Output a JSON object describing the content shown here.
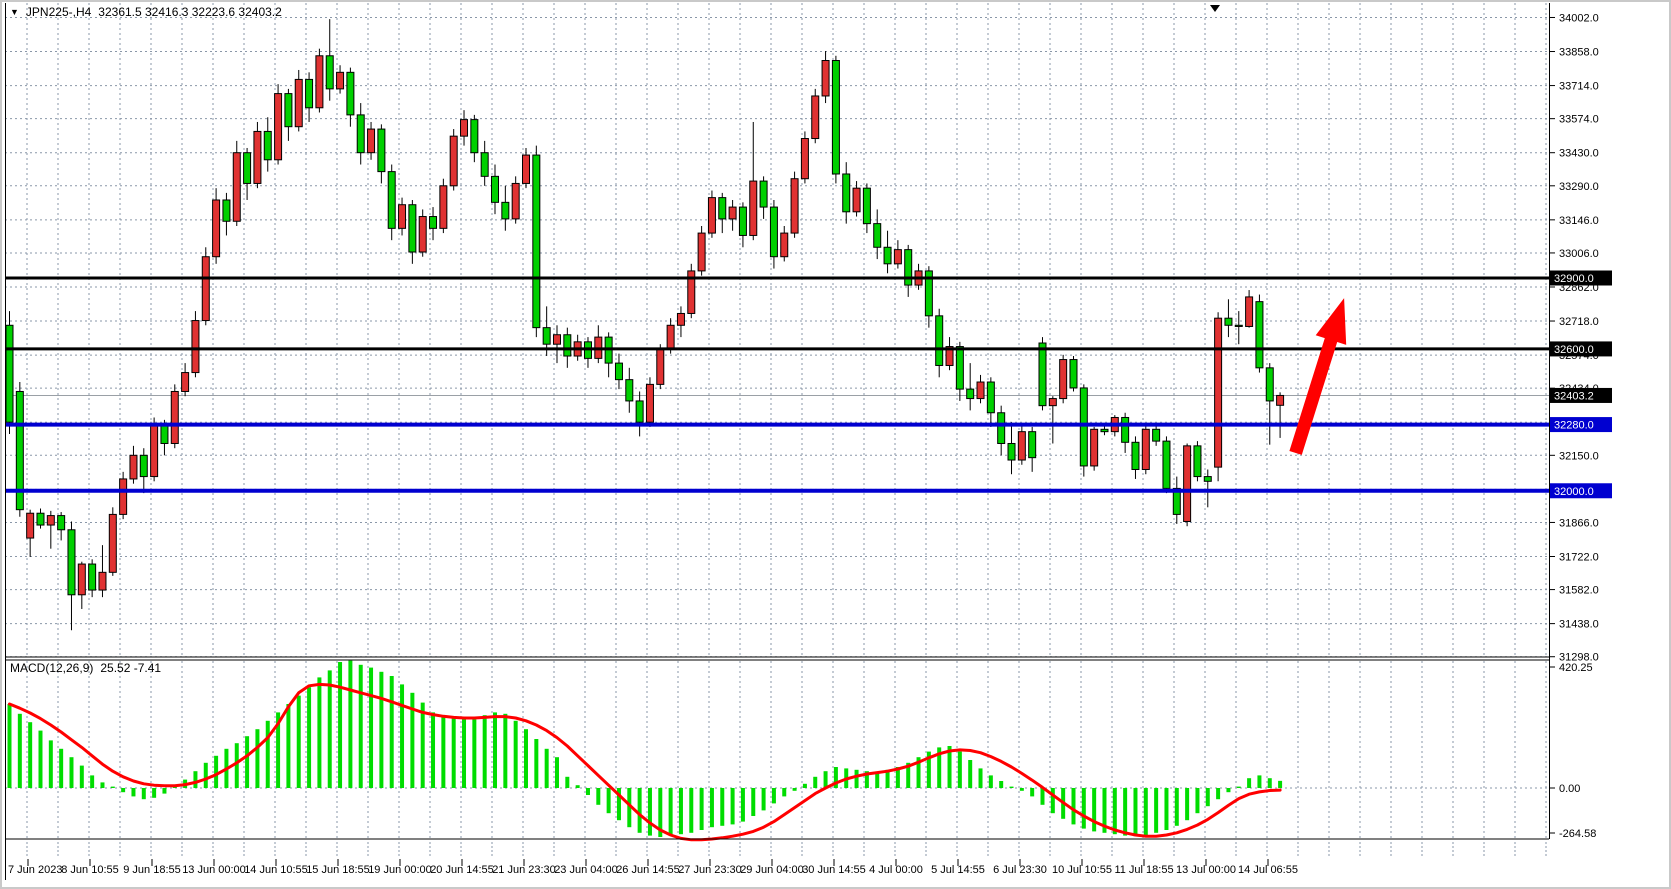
{
  "window": {
    "collapse_icon": "▼",
    "symbol_period": "JPN225-,H4",
    "ohlc_text": "32361.5 32416.3 32223.6 32403.2"
  },
  "colors": {
    "background": "#ffffff",
    "grid": "#8a97a8",
    "bull_candle": "#e03232",
    "bear_candle": "#00d000",
    "candle_border": "#000000",
    "wick": "#000000",
    "black_level_line": "#000000",
    "blue_level_line": "#0000d0",
    "current_price_line": "#9aa0a6",
    "macd_histogram": "#00dd00",
    "macd_signal": "#ff0000",
    "arrow": "#ff0000",
    "axis_text": "#000000",
    "chip_text": "#ffffff",
    "chip_black_bg": "#000000",
    "chip_blue_bg": "#0000d0"
  },
  "macd_panel": {
    "label": "MACD(12,26,9)",
    "values_text": "25.52 -7.41",
    "scale_max": "420.25",
    "scale_zero": "0.00",
    "scale_min": "-264.58"
  },
  "time_axis": {
    "labels": [
      "7 Jun 2023",
      "8 Jun 10:55",
      "9 Jun 18:55",
      "13 Jun 00:00",
      "14 Jun 10:55",
      "15 Jun 18:55",
      "19 Jun 00:00",
      "20 Jun 14:55",
      "21 Jun 23:30",
      "23 Jun 04:00",
      "26 Jun 14:55",
      "27 Jun 23:30",
      "29 Jun 04:00",
      "30 Jun 14:55",
      "4 Jul 00:00",
      "5 Jul 14:55",
      "6 Jul 23:30",
      "10 Jul 10:55",
      "11 Jul 18:55",
      "13 Jul 00:00",
      "14 Jul 06:55"
    ]
  },
  "chart_data": {
    "type": "candlestick",
    "symbol": "JPN225-",
    "timeframe": "H4",
    "title_ohlc": {
      "open": 32361.5,
      "high": 32416.3,
      "low": 32223.6,
      "close": 32403.2
    },
    "ylim": [
      31298.0,
      34002.0
    ],
    "price_axis_ticks": [
      34002.0,
      33858.0,
      33714.0,
      33574.0,
      33430.0,
      33290.0,
      33146.0,
      33006.0,
      32862.0,
      32718.0,
      32574.0,
      32434.0,
      32290.0,
      32150.0,
      32006.0,
      31866.0,
      31722.0,
      31582.0,
      31438.0,
      31298.0
    ],
    "hidden_axis_ticks": [
      32290.0,
      32006.0
    ],
    "current_price": 32403.2,
    "current_price_label": "32403.2",
    "horizontal_lines": [
      {
        "price": 32900.0,
        "label": "32900.0",
        "color": "black",
        "width": 3
      },
      {
        "price": 32600.0,
        "label": "32600.0",
        "color": "black",
        "width": 3
      },
      {
        "price": 32280.0,
        "label": "32280.0",
        "color": "blue",
        "width": 4
      },
      {
        "price": 32000.0,
        "label": "32000.0",
        "color": "blue",
        "width": 4
      }
    ],
    "candles": [
      [
        32700,
        32760,
        32240,
        32290
      ],
      [
        32420,
        32460,
        31890,
        31920
      ],
      [
        31800,
        31920,
        31720,
        31905
      ],
      [
        31905,
        31925,
        31840,
        31855
      ],
      [
        31855,
        31915,
        31755,
        31895
      ],
      [
        31895,
        31910,
        31790,
        31835
      ],
      [
        31835,
        31870,
        31410,
        31560
      ],
      [
        31560,
        31700,
        31500,
        31690
      ],
      [
        31690,
        31710,
        31550,
        31580
      ],
      [
        31580,
        31770,
        31550,
        31655
      ],
      [
        31655,
        31930,
        31640,
        31900
      ],
      [
        31900,
        32080,
        31880,
        32050
      ],
      [
        32050,
        32190,
        32030,
        32150
      ],
      [
        32150,
        32180,
        31990,
        32060
      ],
      [
        32060,
        32310,
        32040,
        32280
      ],
      [
        32280,
        32300,
        32150,
        32200
      ],
      [
        32200,
        32450,
        32180,
        32420
      ],
      [
        32420,
        32540,
        32400,
        32500
      ],
      [
        32500,
        32760,
        32480,
        32720
      ],
      [
        32720,
        33030,
        32700,
        32990
      ],
      [
        32990,
        33280,
        32960,
        33230
      ],
      [
        33230,
        33260,
        33080,
        33140
      ],
      [
        33140,
        33480,
        33120,
        33430
      ],
      [
        33430,
        33450,
        33230,
        33300
      ],
      [
        33300,
        33560,
        33280,
        33520
      ],
      [
        33520,
        33580,
        33350,
        33400
      ],
      [
        33400,
        33720,
        33380,
        33680
      ],
      [
        33680,
        33700,
        33480,
        33540
      ],
      [
        33540,
        33780,
        33520,
        33740
      ],
      [
        33740,
        33770,
        33560,
        33620
      ],
      [
        33620,
        33870,
        33600,
        33840
      ],
      [
        33840,
        33995,
        33650,
        33700
      ],
      [
        33700,
        33800,
        33680,
        33770
      ],
      [
        33770,
        33790,
        33540,
        33590
      ],
      [
        33590,
        33640,
        33380,
        33430
      ],
      [
        33430,
        33560,
        33400,
        33530
      ],
      [
        33530,
        33550,
        33300,
        33350
      ],
      [
        33350,
        33380,
        33060,
        33110
      ],
      [
        33110,
        33240,
        33080,
        33210
      ],
      [
        33210,
        33230,
        32960,
        33010
      ],
      [
        33010,
        33190,
        32990,
        33160
      ],
      [
        33160,
        33200,
        33060,
        33110
      ],
      [
        33110,
        33320,
        33090,
        33290
      ],
      [
        33290,
        33530,
        33270,
        33500
      ],
      [
        33500,
        33610,
        33460,
        33570
      ],
      [
        33570,
        33590,
        33390,
        33430
      ],
      [
        33430,
        33480,
        33290,
        33330
      ],
      [
        33330,
        33380,
        33170,
        33220
      ],
      [
        33220,
        33290,
        33100,
        33150
      ],
      [
        33150,
        33330,
        33130,
        33300
      ],
      [
        33300,
        33450,
        33280,
        33420
      ],
      [
        33420,
        33460,
        32650,
        32690
      ],
      [
        32690,
        32780,
        32570,
        32620
      ],
      [
        32620,
        32700,
        32540,
        32660
      ],
      [
        32660,
        32690,
        32520,
        32570
      ],
      [
        32570,
        32660,
        32550,
        32630
      ],
      [
        32630,
        32650,
        32520,
        32560
      ],
      [
        32560,
        32700,
        32540,
        32650
      ],
      [
        32650,
        32670,
        32480,
        32540
      ],
      [
        32540,
        32580,
        32430,
        32470
      ],
      [
        32470,
        32520,
        32330,
        32380
      ],
      [
        32380,
        32420,
        32230,
        32290
      ],
      [
        32290,
        32480,
        32270,
        32450
      ],
      [
        32450,
        32620,
        32430,
        32600
      ],
      [
        32600,
        32730,
        32580,
        32700
      ],
      [
        32700,
        32780,
        32650,
        32750
      ],
      [
        32750,
        32960,
        32730,
        32930
      ],
      [
        32930,
        33120,
        32910,
        33090
      ],
      [
        33090,
        33270,
        33070,
        33240
      ],
      [
        33240,
        33260,
        33090,
        33150
      ],
      [
        33150,
        33230,
        33100,
        33200
      ],
      [
        33200,
        33220,
        33030,
        33080
      ],
      [
        33080,
        33560,
        33060,
        33310
      ],
      [
        33310,
        33330,
        33150,
        33200
      ],
      [
        33200,
        33230,
        32940,
        32990
      ],
      [
        32990,
        33120,
        32970,
        33090
      ],
      [
        33090,
        33350,
        33070,
        33320
      ],
      [
        33320,
        33520,
        33300,
        33490
      ],
      [
        33490,
        33700,
        33470,
        33670
      ],
      [
        33670,
        33860,
        33640,
        33820
      ],
      [
        33820,
        33840,
        33300,
        33340
      ],
      [
        33340,
        33390,
        33130,
        33180
      ],
      [
        33180,
        33310,
        33160,
        33280
      ],
      [
        33280,
        33300,
        33090,
        33130
      ],
      [
        33130,
        33190,
        32980,
        33030
      ],
      [
        33030,
        33100,
        32920,
        32960
      ],
      [
        32960,
        33060,
        32940,
        33020
      ],
      [
        33020,
        33040,
        32820,
        32870
      ],
      [
        32870,
        32960,
        32850,
        32930
      ],
      [
        32930,
        32950,
        32690,
        32740
      ],
      [
        32740,
        32770,
        32480,
        32530
      ],
      [
        32530,
        32650,
        32510,
        32610
      ],
      [
        32610,
        32630,
        32380,
        32430
      ],
      [
        32430,
        32540,
        32340,
        32390
      ],
      [
        32390,
        32490,
        32370,
        32460
      ],
      [
        32460,
        32480,
        32270,
        32330
      ],
      [
        32330,
        32360,
        32150,
        32200
      ],
      [
        32200,
        32290,
        32070,
        32130
      ],
      [
        32130,
        32280,
        32110,
        32250
      ],
      [
        32250,
        32270,
        32080,
        32140
      ],
      [
        32625,
        32650,
        32340,
        32360
      ],
      [
        32360,
        32400,
        32200,
        32390
      ],
      [
        32390,
        32575,
        32370,
        32555
      ],
      [
        32555,
        32570,
        32420,
        32435
      ],
      [
        32435,
        32450,
        32060,
        32105
      ],
      [
        32105,
        32270,
        32085,
        32260
      ],
      [
        32260,
        32285,
        32235,
        32250
      ],
      [
        32250,
        32320,
        32230,
        32310
      ],
      [
        32310,
        32330,
        32160,
        32205
      ],
      [
        32205,
        32230,
        32050,
        32090
      ],
      [
        32090,
        32280,
        32070,
        32260
      ],
      [
        32260,
        32283,
        32190,
        32210
      ],
      [
        32210,
        32230,
        31990,
        32010
      ],
      [
        32010,
        32060,
        31860,
        31900
      ],
      [
        31870,
        32200,
        31850,
        32190
      ],
      [
        32190,
        32210,
        32040,
        32060
      ],
      [
        32060,
        32090,
        31930,
        32040
      ],
      [
        32100,
        32755,
        32040,
        32730
      ],
      [
        32730,
        32810,
        32650,
        32700
      ],
      [
        32700,
        32760,
        32620,
        32695
      ],
      [
        32695,
        32849,
        32690,
        32820
      ],
      [
        32800,
        32830,
        32500,
        32520
      ],
      [
        32520,
        32540,
        32195,
        32380
      ],
      [
        32361.5,
        32416.3,
        32223.6,
        32403.2
      ]
    ],
    "bull_color_meaning": "red body = close above open, green body = close below open",
    "macd": {
      "label": "MACD(12,26,9)",
      "last_macd": 25.52,
      "last_signal": -7.41,
      "scale": {
        "max": 420.25,
        "zero": 0.0,
        "min": -264.58
      },
      "histogram": [
        300,
        265,
        235,
        205,
        170,
        140,
        110,
        80,
        45,
        20,
        5,
        -15,
        -30,
        -40,
        -35,
        -20,
        5,
        30,
        60,
        90,
        115,
        140,
        160,
        185,
        210,
        240,
        270,
        300,
        330,
        360,
        395,
        420,
        450,
        455,
        440,
        430,
        415,
        400,
        370,
        340,
        305,
        270,
        260,
        255,
        250,
        245,
        260,
        270,
        265,
        240,
        210,
        175,
        140,
        110,
        40,
        10,
        -25,
        -60,
        -90,
        -115,
        -140,
        -160,
        -170,
        -175,
        -170,
        -165,
        -160,
        -150,
        -140,
        -135,
        -130,
        -120,
        -100,
        -80,
        -55,
        -30,
        -10,
        15,
        40,
        60,
        75,
        70,
        65,
        60,
        55,
        65,
        75,
        90,
        110,
        130,
        145,
        150,
        130,
        100,
        70,
        45,
        25,
        5,
        -10,
        -30,
        -60,
        -90,
        -110,
        -130,
        -145,
        -155,
        -160,
        -165,
        -170,
        -172,
        -170,
        -160,
        -150,
        -135,
        -115,
        -90,
        -65,
        -40,
        -15,
        5,
        35,
        45,
        35,
        25.52
      ],
      "signal": [
        300,
        285,
        268,
        248,
        225,
        200,
        172,
        145,
        115,
        85,
        60,
        40,
        25,
        15,
        10,
        8,
        8,
        12,
        20,
        32,
        48,
        68,
        90,
        115,
        145,
        180,
        230,
        290,
        340,
        365,
        370,
        368,
        360,
        350,
        340,
        330,
        320,
        308,
        295,
        282,
        270,
        262,
        256,
        252,
        250,
        250,
        252,
        255,
        255,
        250,
        240,
        225,
        205,
        180,
        150,
        115,
        80,
        45,
        10,
        -25,
        -60,
        -95,
        -125,
        -150,
        -168,
        -180,
        -185,
        -185,
        -182,
        -178,
        -172,
        -165,
        -155,
        -140,
        -120,
        -95,
        -70,
        -45,
        -20,
        0,
        18,
        32,
        42,
        50,
        55,
        60,
        68,
        78,
        92,
        108,
        122,
        132,
        136,
        134,
        126,
        112,
        95,
        75,
        52,
        28,
        2,
        -25,
        -52,
        -78,
        -100,
        -120,
        -136,
        -150,
        -160,
        -168,
        -172,
        -172,
        -168,
        -160,
        -148,
        -132,
        -112,
        -88,
        -62,
        -38,
        -22,
        -14,
        -9,
        -7.41
      ]
    },
    "annotation_arrow": {
      "from": {
        "index": 124.5,
        "price": 32160
      },
      "to": {
        "index": 129.2,
        "price": 32815
      }
    },
    "chart_shift_marker_index": 116.7,
    "x_labels": [
      "7 Jun 2023",
      "8 Jun 10:55",
      "9 Jun 18:55",
      "13 Jun 00:00",
      "14 Jun 10:55",
      "15 Jun 18:55",
      "19 Jun 00:00",
      "20 Jun 14:55",
      "21 Jun 23:30",
      "23 Jun 04:00",
      "26 Jun 14:55",
      "27 Jun 23:30",
      "29 Jun 04:00",
      "30 Jun 14:55",
      "4 Jul 00:00",
      "5 Jul 14:55",
      "6 Jul 23:30",
      "10 Jul 10:55",
      "11 Jul 18:55",
      "13 Jul 00:00",
      "14 Jul 06:55"
    ]
  }
}
